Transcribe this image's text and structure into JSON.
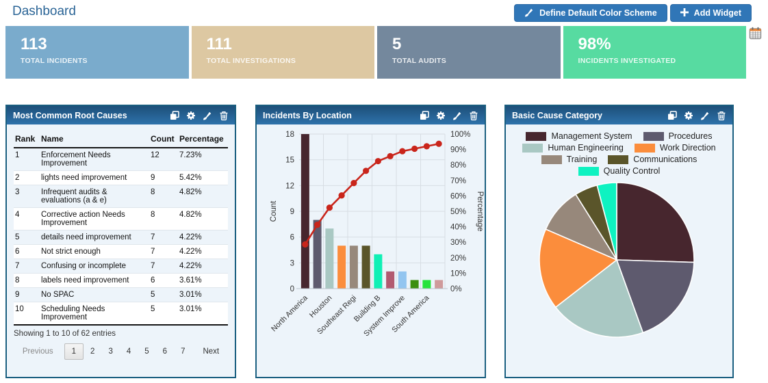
{
  "header": {
    "title": "Dashboard",
    "define_color_scheme_label": "Define Default Color Scheme",
    "add_widget_label": "Add Widget"
  },
  "kpis": [
    {
      "value": "113",
      "label": "TOTAL INCIDENTS",
      "color": "#7aabcc"
    },
    {
      "value": "111",
      "label": "TOTAL INVESTIGATIONS",
      "color": "#ddc8a2"
    },
    {
      "value": "5",
      "label": "TOTAL AUDITS",
      "color": "#74889d"
    },
    {
      "value": "98%",
      "label": "INCIDENTS INVESTIGATED",
      "color": "#57dba1"
    }
  ],
  "root_causes": {
    "title": "Most Common Root Causes",
    "columns": [
      "Rank",
      "Name",
      "Count",
      "Percentage"
    ],
    "rows": [
      [
        "1",
        "Enforcement Needs Improvement",
        "12",
        "7.23%"
      ],
      [
        "2",
        "lights need improvement",
        "9",
        "5.42%"
      ],
      [
        "3",
        "Infrequent audits & evaluations (a & e)",
        "8",
        "4.82%"
      ],
      [
        "4",
        "Corrective action Needs Improvement",
        "8",
        "4.82%"
      ],
      [
        "5",
        "details need improvement",
        "7",
        "4.22%"
      ],
      [
        "6",
        "Not strict enough",
        "7",
        "4.22%"
      ],
      [
        "7",
        "Confusing or incomplete",
        "7",
        "4.22%"
      ],
      [
        "8",
        "labels need improvement",
        "6",
        "3.61%"
      ],
      [
        "9",
        "No SPAC",
        "5",
        "3.01%"
      ],
      [
        "10",
        "Scheduling Needs Improvement",
        "5",
        "3.01%"
      ]
    ],
    "footer": "Showing 1 to 10 of 62 entries",
    "pagination": {
      "previous": "Previous",
      "pages": [
        "1",
        "2",
        "3",
        "4",
        "5",
        "6",
        "7"
      ],
      "active": "1",
      "next": "Next"
    }
  },
  "chart_data": [
    {
      "type": "bar",
      "subtype": "pareto",
      "title": "Incidents By Location",
      "values": [
        18,
        8,
        7,
        5,
        5,
        5,
        4,
        2,
        2,
        1,
        1,
        1
      ],
      "cumulative_pct": [
        28.6,
        41.3,
        52.4,
        60.3,
        68.3,
        76.2,
        82.5,
        85.7,
        88.9,
        90.5,
        92.1,
        93.7
      ],
      "xtick_labels": [
        "North America",
        "Houston",
        "Southeast Regi",
        "Building B",
        "System Improve",
        "South America"
      ],
      "xtick_bar_indices": [
        0,
        2,
        4,
        6,
        8,
        10
      ],
      "ylabel": "Count",
      "y2label": "Percentage",
      "ylim": [
        0,
        18
      ],
      "yticks": [
        0,
        3,
        6,
        9,
        12,
        15,
        18
      ],
      "y2ticks": [
        0,
        10,
        20,
        30,
        40,
        50,
        60,
        70,
        80,
        90,
        100
      ],
      "grid": true,
      "bar_colors": [
        "#47262e",
        "#5e5a6e",
        "#a9c8c3",
        "#fb8d3c",
        "#97887b",
        "#5a552a",
        "#10f0b5",
        "#b25a70",
        "#92c5f0",
        "#3b8f10",
        "#27e33c",
        "#cf9a9b"
      ],
      "line_color": "#c9251b"
    },
    {
      "type": "pie",
      "title": "Basic Cause Category",
      "labels": [
        "Management System",
        "Procedures",
        "Human Engineering",
        "Work Direction",
        "Training",
        "Communications",
        "Quality Control"
      ],
      "values_pct": [
        25.5,
        19,
        20,
        17,
        9.6,
        4.8,
        4.1
      ],
      "colors": [
        "#47262e",
        "#5e5a6e",
        "#a9c8c3",
        "#fb8d3c",
        "#97887b",
        "#5a552a",
        "#0ef2c1"
      ],
      "legend_position": "top",
      "start_angle_deg": 0,
      "direction": "clockwise"
    }
  ],
  "colors": {
    "accent_blue": "#3076b7",
    "page_title": "#2a6496",
    "widget_border": "#1a5f80",
    "widget_header_top": "#1d4f79",
    "widget_header_bottom": "#2e72ab",
    "widget_background": "#edf4fa",
    "grid_line": "#d7dde3"
  }
}
